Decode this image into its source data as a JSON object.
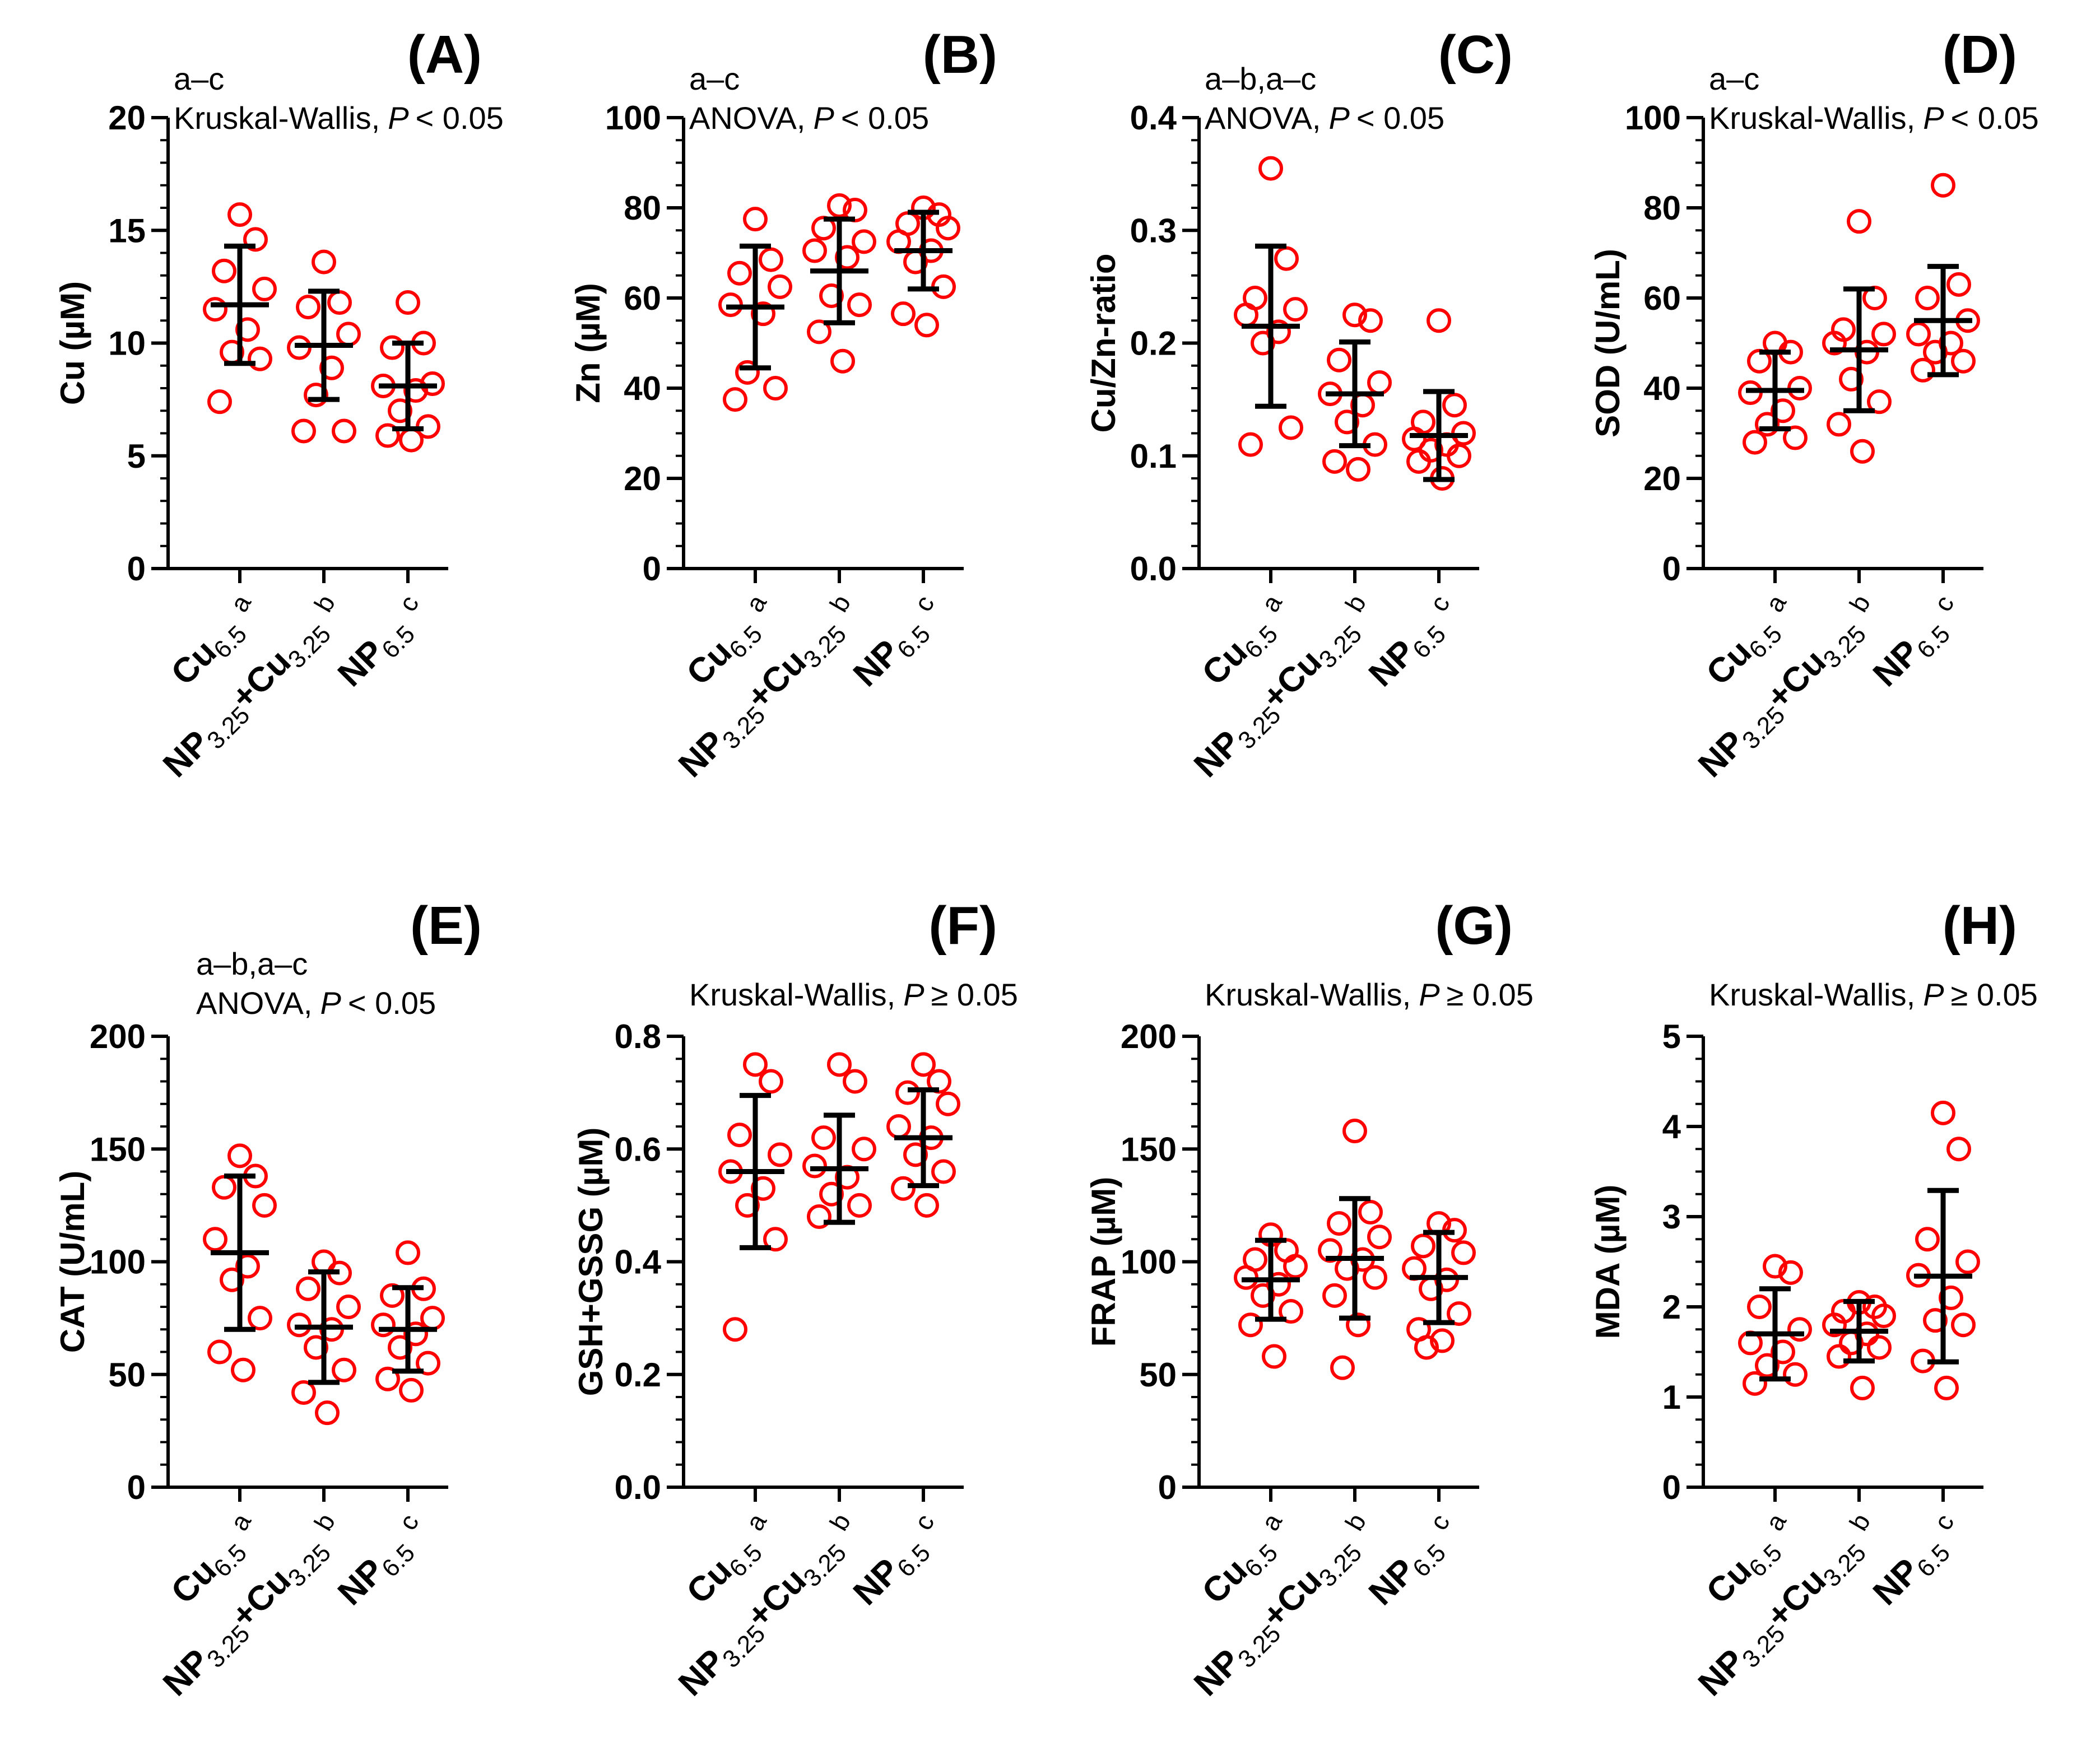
{
  "colors": {
    "point": "#ff0000",
    "axis": "#000000",
    "errorbar": "#000000"
  },
  "groups": [
    {
      "main": "Cu",
      "sub": "6.5",
      "sig": "a"
    },
    {
      "main": "NP",
      "sub": "3.25",
      "main2": "+Cu",
      "sub2": "3.25",
      "sig": "b"
    },
    {
      "main": "NP",
      "sub": "6.5",
      "sig": "c"
    }
  ],
  "chart_data": [
    {
      "panel": "(A)",
      "type": "scatter",
      "ylabel": "Cu (µM)",
      "stat_line1": "a–c",
      "stat_test": "Kruskal-Wallis,",
      "stat_p": "P",
      "stat_rel": "< 0.05",
      "ylim": [
        0,
        20
      ],
      "yticks": [
        "0",
        "5",
        "10",
        "15",
        "20"
      ],
      "tick_values": [
        0,
        5,
        10,
        15,
        20
      ],
      "minor_step": 1,
      "categories": [
        "Cu6.5",
        "NP3.25+Cu3.25",
        "NP6.5"
      ],
      "means": [
        11.7,
        9.9,
        8.1
      ],
      "sd": [
        2.6,
        2.4,
        1.9
      ],
      "points": [
        [
          15.7,
          14.6,
          13.2,
          12.4,
          11.5,
          10.6,
          9.6,
          9.3,
          7.4
        ],
        [
          13.6,
          11.8,
          11.6,
          10.4,
          9.8,
          8.9,
          7.7,
          6.1,
          6.1
        ],
        [
          11.8,
          10.0,
          9.8,
          8.2,
          8.1,
          7.9,
          7.0,
          6.3,
          5.9,
          5.7
        ]
      ]
    },
    {
      "panel": "(B)",
      "type": "scatter",
      "ylabel": "Zn (µM)",
      "stat_line1": "a–c",
      "stat_test": "ANOVA,",
      "stat_p": "P",
      "stat_rel": "< 0.05",
      "ylim": [
        0,
        100
      ],
      "yticks": [
        "0",
        "20",
        "40",
        "60",
        "80",
        "100"
      ],
      "tick_values": [
        0,
        20,
        40,
        60,
        80,
        100
      ],
      "minor_step": 5,
      "categories": [
        "Cu6.5",
        "NP3.25+Cu3.25",
        "NP6.5"
      ],
      "means": [
        58,
        66,
        70.5
      ],
      "sd": [
        13.5,
        11.5,
        8.5
      ],
      "points": [
        [
          77.5,
          68.5,
          65.5,
          62.5,
          58.5,
          56.5,
          43.5,
          40,
          37.5
        ],
        [
          80.5,
          79.5,
          75.5,
          72.5,
          70.5,
          69,
          60.5,
          58.5,
          52.5,
          46
        ],
        [
          80,
          78.5,
          76.5,
          75.5,
          72.5,
          70.5,
          68,
          62.5,
          56.5,
          54
        ]
      ]
    },
    {
      "panel": "(C)",
      "type": "scatter",
      "ylabel": "Cu/Zn-ratio",
      "stat_line1": "a–b,a–c",
      "stat_test": "ANOVA,",
      "stat_p": "P",
      "stat_rel": "< 0.05",
      "ylim": [
        0,
        0.4
      ],
      "yticks": [
        "0.0",
        "0.1",
        "0.2",
        "0.3",
        "0.4"
      ],
      "tick_values": [
        0,
        0.1,
        0.2,
        0.3,
        0.4
      ],
      "minor_step": 0.02,
      "categories": [
        "Cu6.5",
        "NP3.25+Cu3.25",
        "NP6.5"
      ],
      "means": [
        0.215,
        0.155,
        0.118
      ],
      "sd": [
        0.071,
        0.046,
        0.039
      ],
      "points": [
        [
          0.355,
          0.275,
          0.24,
          0.23,
          0.225,
          0.21,
          0.2,
          0.125,
          0.11
        ],
        [
          0.225,
          0.22,
          0.185,
          0.165,
          0.155,
          0.145,
          0.13,
          0.11,
          0.095,
          0.088
        ],
        [
          0.22,
          0.145,
          0.13,
          0.12,
          0.115,
          0.11,
          0.105,
          0.1,
          0.095,
          0.08
        ]
      ]
    },
    {
      "panel": "(D)",
      "type": "scatter",
      "ylabel": "SOD (U/mL)",
      "stat_line1": "a–c",
      "stat_test": "Kruskal-Wallis,",
      "stat_p": "P",
      "stat_rel": "< 0.05",
      "ylim": [
        0,
        100
      ],
      "yticks": [
        "0",
        "20",
        "40",
        "60",
        "80",
        "100"
      ],
      "tick_values": [
        0,
        20,
        40,
        60,
        80,
        100
      ],
      "minor_step": 5,
      "categories": [
        "Cu6.5",
        "NP3.25+Cu3.25",
        "NP6.5"
      ],
      "means": [
        39.5,
        48.5,
        55
      ],
      "sd": [
        8.5,
        13.5,
        12
      ],
      "points": [
        [
          50,
          48,
          46,
          40,
          39,
          35,
          32,
          29,
          28
        ],
        [
          77,
          60,
          53,
          52,
          50,
          48,
          42,
          37,
          32,
          26
        ],
        [
          85,
          63,
          60,
          55,
          52,
          50,
          48,
          46,
          44
        ]
      ]
    },
    {
      "panel": "(E)",
      "type": "scatter",
      "ylabel": "CAT (U/mL)",
      "stat_line1": "a–b,a–c",
      "stat_test": "ANOVA,",
      "stat_p": "P",
      "stat_rel": "< 0.05",
      "ylim": [
        0,
        200
      ],
      "yticks": [
        "0",
        "50",
        "100",
        "150",
        "200"
      ],
      "tick_values": [
        0,
        50,
        100,
        150,
        200
      ],
      "minor_step": 10,
      "categories": [
        "Cu6.5",
        "NP3.25+Cu3.25",
        "NP6.5"
      ],
      "means": [
        104,
        71,
        70
      ],
      "sd": [
        34,
        24.5,
        18.5
      ],
      "points": [
        [
          147,
          138,
          133,
          125,
          110,
          98,
          92,
          75,
          60,
          52
        ],
        [
          100,
          95,
          88,
          80,
          72,
          70,
          62,
          52,
          42,
          33
        ],
        [
          104,
          88,
          85,
          75,
          72,
          68,
          62,
          55,
          48,
          43
        ]
      ]
    },
    {
      "panel": "(F)",
      "type": "scatter",
      "ylabel": "GSH+GSSG (µM)",
      "stat_line1": "",
      "stat_test": "Kruskal-Wallis,",
      "stat_p": "P",
      "stat_rel": "≥ 0.05",
      "ylim": [
        0,
        0.8
      ],
      "yticks": [
        "0.0",
        "0.2",
        "0.4",
        "0.6",
        "0.8"
      ],
      "tick_values": [
        0,
        0.2,
        0.4,
        0.6,
        0.8
      ],
      "minor_step": 0.04,
      "categories": [
        "Cu6.5",
        "NP3.25+Cu3.25",
        "NP6.5"
      ],
      "means": [
        0.56,
        0.565,
        0.62
      ],
      "sd": [
        0.135,
        0.095,
        0.085
      ],
      "points": [
        [
          0.75,
          0.72,
          0.625,
          0.59,
          0.56,
          0.53,
          0.5,
          0.44,
          0.28
        ],
        [
          0.75,
          0.72,
          0.62,
          0.6,
          0.57,
          0.55,
          0.52,
          0.5,
          0.48
        ],
        [
          0.75,
          0.72,
          0.7,
          0.68,
          0.64,
          0.62,
          0.59,
          0.56,
          0.53,
          0.5
        ]
      ]
    },
    {
      "panel": "(G)",
      "type": "scatter",
      "ylabel": "FRAP (µM)",
      "stat_line1": "",
      "stat_test": "Kruskal-Wallis,",
      "stat_p": "P",
      "stat_rel": "≥ 0.05",
      "ylim": [
        0,
        200
      ],
      "yticks": [
        "0",
        "50",
        "100",
        "150",
        "200"
      ],
      "tick_values": [
        0,
        50,
        100,
        150,
        200
      ],
      "minor_step": 10,
      "categories": [
        "Cu6.5",
        "NP3.25+Cu3.25",
        "NP6.5"
      ],
      "means": [
        92,
        101.5,
        93
      ],
      "sd": [
        17.5,
        26.5,
        20
      ],
      "points": [
        [
          112,
          105,
          101,
          98,
          93,
          90,
          85,
          78,
          72,
          58
        ],
        [
          158,
          122,
          117,
          111,
          105,
          101,
          97,
          93,
          85,
          72,
          53
        ],
        [
          117,
          114,
          107,
          104,
          97,
          92,
          88,
          77,
          70,
          65,
          62
        ]
      ]
    },
    {
      "panel": "(H)",
      "type": "scatter",
      "ylabel": "MDA (µM)",
      "stat_line1": "",
      "stat_test": "Kruskal-Wallis,",
      "stat_p": "P",
      "stat_rel": "≥ 0.05",
      "ylim": [
        0,
        5
      ],
      "yticks": [
        "0",
        "1",
        "2",
        "3",
        "4",
        "5"
      ],
      "tick_values": [
        0,
        1,
        2,
        3,
        4,
        5
      ],
      "minor_step": 0.25,
      "categories": [
        "Cu6.5",
        "NP3.25+Cu3.25",
        "NP6.5"
      ],
      "means": [
        1.7,
        1.73,
        2.34
      ],
      "sd": [
        0.5,
        0.33,
        0.95
      ],
      "points": [
        [
          2.45,
          2.38,
          2.0,
          1.75,
          1.6,
          1.5,
          1.35,
          1.25,
          1.15
        ],
        [
          2.05,
          2.0,
          1.95,
          1.9,
          1.8,
          1.7,
          1.6,
          1.55,
          1.45,
          1.1
        ],
        [
          4.15,
          3.75,
          2.75,
          2.5,
          2.35,
          2.1,
          1.85,
          1.8,
          1.4,
          1.1
        ]
      ]
    }
  ]
}
